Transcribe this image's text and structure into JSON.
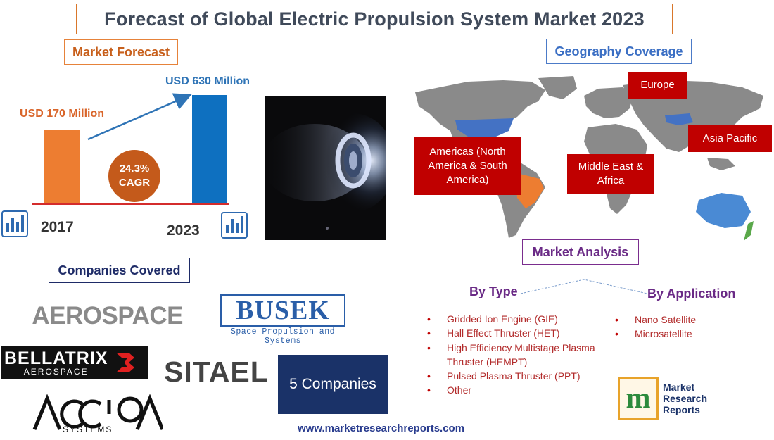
{
  "title": "Forecast of Global Electric Propulsion System Market 2023",
  "market_forecast": {
    "label": "Market Forecast",
    "value_2017": "USD 170 Million",
    "value_2023": "USD 630 Million",
    "cagr_value": "24.3%",
    "cagr_label": "CAGR",
    "year_start": "2017",
    "year_end": "2023",
    "bar_colors": {
      "start": "#ed7d31",
      "end": "#0e70c0"
    }
  },
  "geography": {
    "label": "Geography Coverage",
    "regions": {
      "europe": "Europe",
      "americas": "Americas (North America & South America)",
      "middle_east_africa": "Middle East & Africa",
      "asia_pacific": "Asia Pacific"
    }
  },
  "market_analysis": {
    "label": "Market Analysis",
    "by_type_label": "By Type",
    "by_application_label": "By Application",
    "types": [
      "Gridded Ion Engine (GIE)",
      "Hall Effect Thruster (HET)",
      "High Efficiency Multistage Plasma Thruster (HEMPT)",
      "Pulsed Plasma Thruster (PPT)",
      "Other"
    ],
    "applications": [
      "Nano Satellite",
      "Microsatellite"
    ]
  },
  "companies": {
    "label": "Companies Covered",
    "aerospace": "AEROSPACE",
    "busek_name": "BUSEK",
    "busek_tagline": "Space Propulsion and Systems",
    "bellatrix_name": "BELLATRIX",
    "bellatrix_sub": "AEROSPACE",
    "sitael": "SITAEL",
    "accion_sub": "SYSTEMS",
    "count_label": "5 Companies"
  },
  "publisher": {
    "mrr_line1": "Market",
    "mrr_line2": "Research",
    "mrr_line3": "Reports"
  },
  "website": "www.marketresearchreports.com",
  "icons": [
    "bar-chart-icon",
    "thruster-photo",
    "world-map",
    "aerospace-logo-icon",
    "bellatrix-b-icon",
    "accion-logo",
    "mrr-logo-icon"
  ]
}
